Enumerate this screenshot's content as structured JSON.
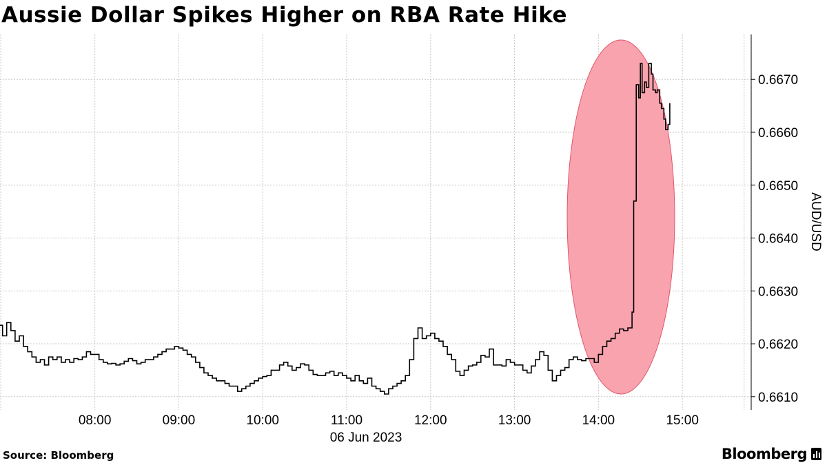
{
  "title": "Aussie Dollar Spikes Higher on RBA Rate Hike",
  "source": "Source: Bloomberg",
  "brand": "Bloomberg",
  "colors": {
    "line": "#000000",
    "highlight_fill": "#f9a3ae",
    "highlight_stroke": "#e0566b",
    "grid": "#c8c8c8"
  },
  "chart_data": {
    "type": "line",
    "title": "Aussie Dollar Spikes Higher on RBA Rate Hike",
    "xlabel": "06 Jun 2023",
    "ylabel": "AUD/USD",
    "x_tick_labels": [
      "08:00",
      "09:00",
      "10:00",
      "11:00",
      "12:00",
      "13:00",
      "14:00",
      "15:00"
    ],
    "x_ticks_hours": [
      8,
      9,
      10,
      11,
      12,
      13,
      14,
      15
    ],
    "xlim": [
      6.87,
      15.82
    ],
    "y_tick_labels": [
      "0.6610",
      "0.6620",
      "0.6630",
      "0.6640",
      "0.6650",
      "0.6660",
      "0.6670"
    ],
    "y_ticks": [
      0.661,
      0.662,
      0.663,
      0.664,
      0.665,
      0.666,
      0.667
    ],
    "ylim": [
      0.66075,
      0.66785
    ],
    "grid": true,
    "annotation": "ellipse highlighting the spike after 14:30",
    "series": [
      {
        "x": [
          6.87,
          6.9,
          6.95,
          7.0,
          7.05,
          7.1,
          7.15,
          7.2,
          7.25,
          7.3,
          7.35,
          7.4,
          7.45,
          7.5,
          7.55,
          7.6,
          7.65,
          7.7,
          7.75,
          7.8,
          7.85,
          7.9,
          7.95,
          8.0,
          8.05,
          8.1,
          8.15,
          8.2,
          8.25,
          8.3,
          8.35,
          8.4,
          8.45,
          8.5,
          8.55,
          8.6,
          8.65,
          8.7,
          8.75,
          8.8,
          8.85,
          8.9,
          8.95,
          9.0,
          9.05,
          9.1,
          9.15,
          9.2,
          9.25,
          9.3,
          9.35,
          9.4,
          9.45,
          9.5,
          9.55,
          9.6,
          9.65,
          9.7,
          9.75,
          9.8,
          9.85,
          9.9,
          9.95,
          10.0,
          10.05,
          10.1,
          10.15,
          10.2,
          10.25,
          10.3,
          10.35,
          10.4,
          10.45,
          10.5,
          10.55,
          10.6,
          10.65,
          10.7,
          10.75,
          10.8,
          10.85,
          10.9,
          10.95,
          11.0,
          11.05,
          11.1,
          11.15,
          11.2,
          11.25,
          11.3,
          11.35,
          11.4,
          11.45,
          11.5,
          11.55,
          11.6,
          11.65,
          11.7,
          11.75,
          11.8,
          11.85,
          11.9,
          11.95,
          12.0,
          12.05,
          12.1,
          12.15,
          12.2,
          12.25,
          12.3,
          12.35,
          12.4,
          12.45,
          12.5,
          12.55,
          12.6,
          12.65,
          12.7,
          12.75,
          12.8,
          12.85,
          12.9,
          12.95,
          13.0,
          13.05,
          13.1,
          13.15,
          13.2,
          13.25,
          13.3,
          13.35,
          13.4,
          13.45,
          13.5,
          13.55,
          13.6,
          13.65,
          13.7,
          13.75,
          13.8,
          13.85,
          13.9,
          13.95,
          14.0,
          14.05,
          14.1,
          14.15,
          14.2,
          14.25,
          14.3,
          14.35,
          14.4,
          14.42,
          14.45,
          14.48,
          14.5,
          14.52,
          14.55,
          14.57,
          14.6,
          14.63,
          14.65,
          14.68,
          14.7,
          14.73,
          14.75,
          14.78,
          14.8,
          14.83,
          14.85
        ],
        "values": [
          0.66235,
          0.66215,
          0.6624,
          0.66225,
          0.66205,
          0.66215,
          0.66195,
          0.66185,
          0.66175,
          0.66165,
          0.6617,
          0.6616,
          0.66175,
          0.6617,
          0.66175,
          0.66165,
          0.6617,
          0.66165,
          0.66172,
          0.6617,
          0.66175,
          0.66185,
          0.6618,
          0.6618,
          0.6617,
          0.66165,
          0.66162,
          0.66163,
          0.6616,
          0.66162,
          0.66167,
          0.66172,
          0.66168,
          0.66162,
          0.66165,
          0.6617,
          0.6617,
          0.66175,
          0.6618,
          0.66185,
          0.6619,
          0.6619,
          0.66195,
          0.66192,
          0.66188,
          0.6618,
          0.66175,
          0.66165,
          0.66155,
          0.66145,
          0.6614,
          0.66135,
          0.6613,
          0.6613,
          0.66125,
          0.6612,
          0.6612,
          0.6611,
          0.66115,
          0.6612,
          0.66125,
          0.6613,
          0.66135,
          0.66138,
          0.6614,
          0.6615,
          0.6615,
          0.6616,
          0.66165,
          0.66158,
          0.6615,
          0.66155,
          0.66162,
          0.6616,
          0.6615,
          0.66142,
          0.6614,
          0.6614,
          0.66145,
          0.66148,
          0.6614,
          0.66145,
          0.6614,
          0.66135,
          0.6613,
          0.6614,
          0.6613,
          0.66125,
          0.66135,
          0.6612,
          0.66115,
          0.6611,
          0.66105,
          0.66115,
          0.6612,
          0.66125,
          0.6613,
          0.6614,
          0.6617,
          0.6621,
          0.6623,
          0.6621,
          0.66215,
          0.6622,
          0.6621,
          0.66205,
          0.66195,
          0.6618,
          0.6617,
          0.66148,
          0.6614,
          0.6615,
          0.66158,
          0.6616,
          0.66165,
          0.66178,
          0.66175,
          0.6619,
          0.6616,
          0.6616,
          0.66158,
          0.6617,
          0.66165,
          0.6616,
          0.6616,
          0.6615,
          0.66145,
          0.66158,
          0.6617,
          0.66185,
          0.66178,
          0.6615,
          0.6613,
          0.6614,
          0.6615,
          0.66155,
          0.6617,
          0.66175,
          0.6617,
          0.66168,
          0.66172,
          0.66172,
          0.66165,
          0.6618,
          0.66195,
          0.66205,
          0.6621,
          0.6622,
          0.66228,
          0.66225,
          0.6623,
          0.6626,
          0.6647,
          0.6669,
          0.66665,
          0.6673,
          0.66675,
          0.66695,
          0.66685,
          0.6673,
          0.6671,
          0.6668,
          0.66675,
          0.6668,
          0.66655,
          0.66645,
          0.66625,
          0.66605,
          0.66615,
          0.66655
        ]
      }
    ]
  }
}
